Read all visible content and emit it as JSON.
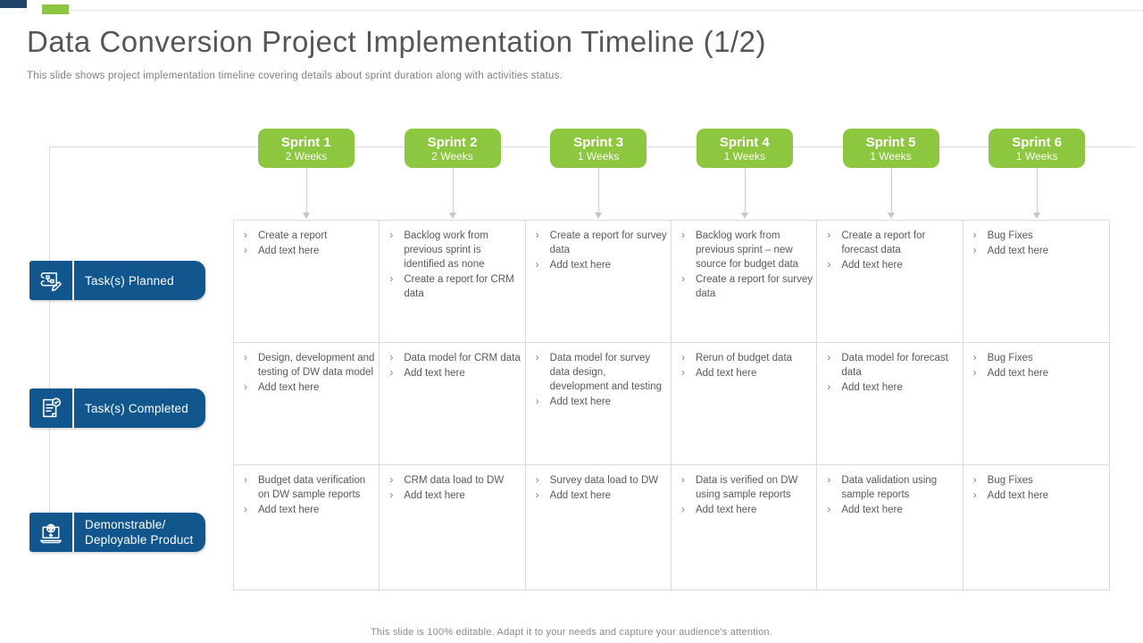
{
  "colors": {
    "accent_green": "#8DC63F",
    "accent_blue": "#11568C",
    "accent_navy": "#1F4466",
    "line_gray": "#DCDCDC",
    "text_gray": "#595959",
    "title_gray": "#54565B"
  },
  "header": {
    "title": "Data Conversion Project Implementation Timeline (1/2)",
    "subtitle": "This slide shows project implementation timeline covering details about sprint duration along with activities status."
  },
  "sprints": [
    {
      "name": "Sprint 1",
      "duration": "2 Weeks"
    },
    {
      "name": "Sprint 2",
      "duration": "2 Weeks"
    },
    {
      "name": "Sprint 3",
      "duration": "1 Weeks"
    },
    {
      "name": "Sprint 4",
      "duration": "1 Weeks"
    },
    {
      "name": "Sprint 5",
      "duration": "1 Weeks"
    },
    {
      "name": "Sprint 6",
      "duration": "1 Weeks"
    }
  ],
  "row_labels": [
    {
      "label": "Task(s) Planned",
      "icon": "blueprint-pencil-icon"
    },
    {
      "label": "Task(s) Completed",
      "icon": "document-check-icon"
    },
    {
      "label": "Demonstrable/\nDeployable Product",
      "icon": "laptop-upload-icon"
    }
  ],
  "grid": {
    "rows": [
      {
        "category": "Task(s) Planned",
        "cells": [
          [
            "Create a report",
            "Add text here"
          ],
          [
            "Backlog work from previous sprint is identified as none",
            "Create a report for CRM data"
          ],
          [
            "Create a report for survey data",
            "Add text here"
          ],
          [
            "Backlog work from previous sprint – new source for budget data",
            "Create a report for survey data"
          ],
          [
            "Create a report for forecast data",
            "Add text here"
          ],
          [
            "Bug Fixes",
            "Add text here"
          ]
        ]
      },
      {
        "category": "Task(s) Completed",
        "cells": [
          [
            "Design, development and testing of DW data model",
            "Add text here"
          ],
          [
            "Data model for CRM data",
            "Add text here"
          ],
          [
            "Data model for survey data design, development and testing",
            "Add text here"
          ],
          [
            "Rerun of budget data",
            "Add text here"
          ],
          [
            "Data model for forecast data",
            "Add text here"
          ],
          [
            "Bug Fixes",
            "Add text here"
          ]
        ]
      },
      {
        "category": "Demonstrable/ Deployable Product",
        "cells": [
          [
            "Budget data verification on DW sample reports",
            "Add text here"
          ],
          [
            "CRM data load to DW",
            "Add text here"
          ],
          [
            "Survey data load to DW",
            "Add text here"
          ],
          [
            "Data is verified on DW using sample reports",
            "Add text here"
          ],
          [
            "Data validation using sample reports",
            "Add text here"
          ],
          [
            "Bug Fixes",
            "Add text here"
          ]
        ]
      }
    ]
  },
  "footer": {
    "note": "This slide is 100% editable. Adapt it to your needs and capture your audience's attention."
  }
}
